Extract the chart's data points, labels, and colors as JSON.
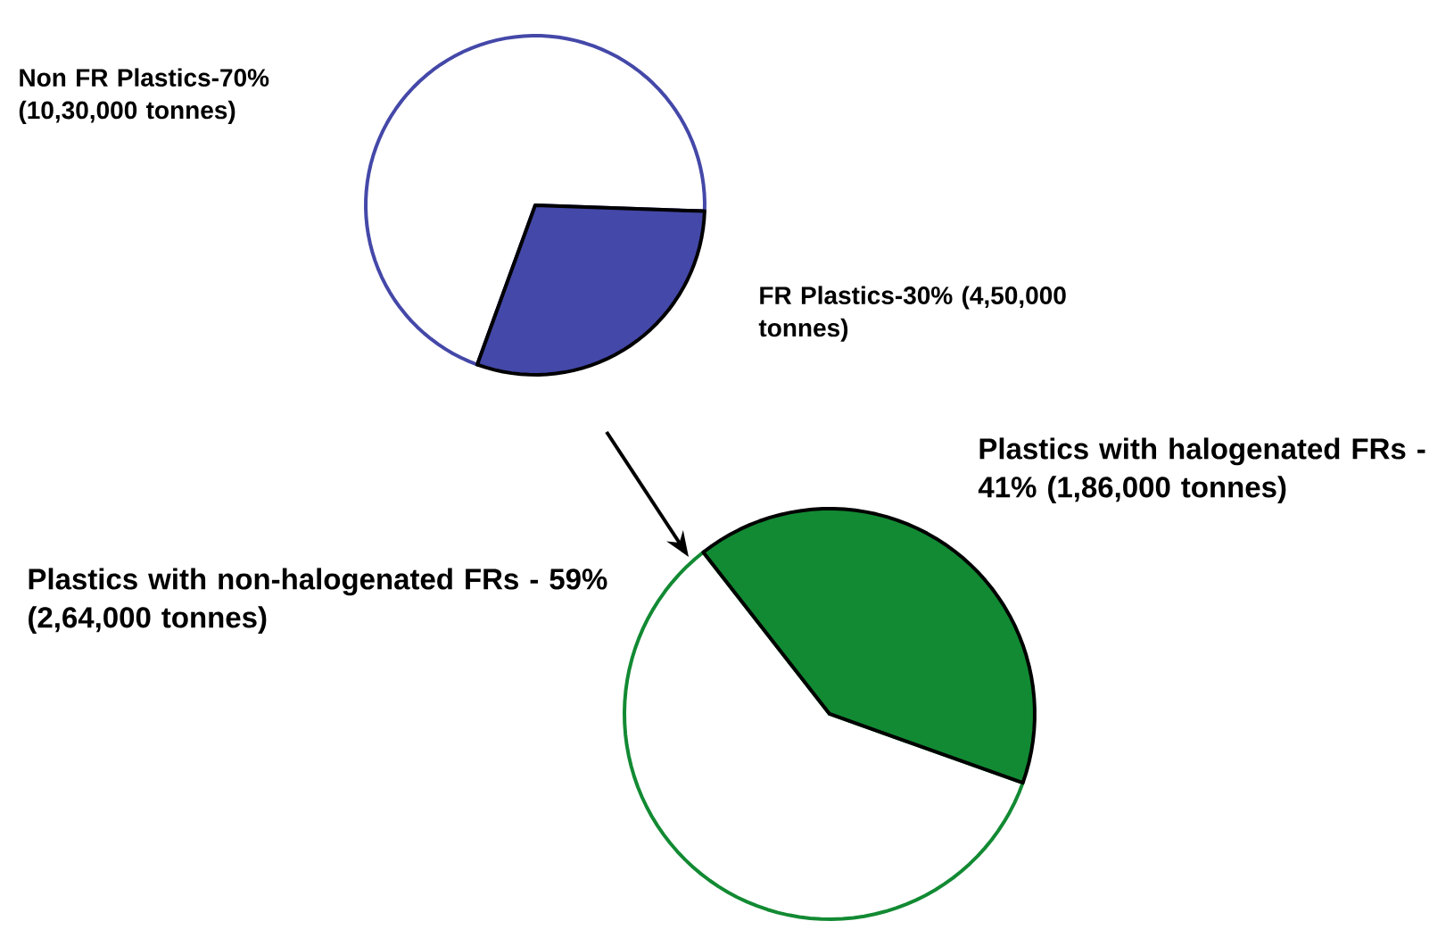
{
  "chart_data": [
    {
      "type": "pie",
      "categories": [
        "Non FR Plastics-70% (10,30,000 tonnes)",
        "FR Plastics-30% (4,50,000 tonnes)"
      ],
      "values": [
        70,
        30
      ],
      "colors": [
        "#ffffff",
        "#4448a8"
      ]
    },
    {
      "type": "pie",
      "categories": [
        "Plastics with non-halogenated FRs - 59% (2,64,000 tonnes)",
        "Plastics with halogenated FRs - 41% (1,86,000 tonnes)"
      ],
      "values": [
        59,
        41
      ],
      "colors": [
        "#ffffff",
        "#128a33"
      ]
    }
  ]
}
